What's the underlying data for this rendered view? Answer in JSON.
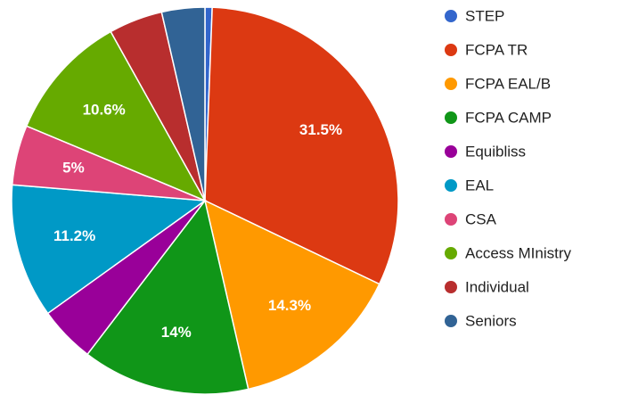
{
  "chart_data": {
    "type": "pie",
    "categories": [
      "STEP",
      "FCPA TR",
      "FCPA EAL/B",
      "FCPA CAMP",
      "Equibliss",
      "EAL",
      "CSA",
      "Access MInistry",
      "Individual",
      "Seniors"
    ],
    "values": [
      0.6,
      31.5,
      14.3,
      14,
      4.7,
      11.2,
      5,
      10.6,
      4.5,
      3.6
    ],
    "value_labels": [
      null,
      "31.5%",
      "14.3%",
      "14%",
      null,
      "11.2%",
      "5%",
      "10.6%",
      null,
      null
    ],
    "colors": [
      "#3366cc",
      "#dc3912",
      "#ff9900",
      "#109618",
      "#990099",
      "#0099c6",
      "#dd4477",
      "#66aa00",
      "#b82e2e",
      "#316395"
    ]
  }
}
